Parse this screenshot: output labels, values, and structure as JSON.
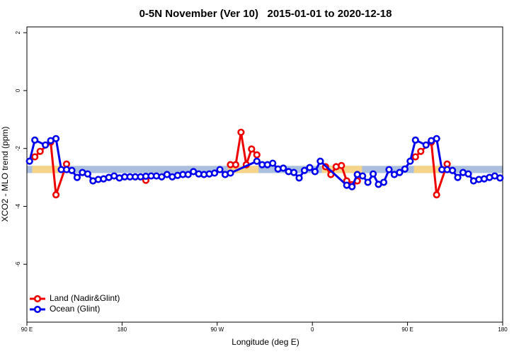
{
  "chart_data": {
    "type": "line",
    "title": "0-5N November (Ver 10)   2015-01-01 to 2020-12-18",
    "xlabel": "Longitude (deg E)",
    "ylabel": "XCO2 - MLO trend (ppm)",
    "xlim": [
      90,
      540
    ],
    "ylim": [
      -8,
      2.2
    ],
    "xticks": [
      {
        "value": 90,
        "label": "90 E"
      },
      {
        "value": 180,
        "label": "180"
      },
      {
        "value": 270,
        "label": "90 W"
      },
      {
        "value": 360,
        "label": "0"
      },
      {
        "value": 450,
        "label": "90 E"
      },
      {
        "value": 540,
        "label": "180"
      }
    ],
    "yticks": [
      -6,
      -4,
      -2,
      0,
      2
    ],
    "band": {
      "range": [
        -2.85,
        -2.6
      ],
      "color": "#a9bfdd",
      "land_color": "#f6d48a",
      "land_spans": [
        [
          95,
          128
        ],
        [
          280,
          309
        ],
        [
          369,
          407
        ],
        [
          456,
          486
        ]
      ]
    },
    "legend": "bottom-left",
    "series": [
      {
        "name": "Land (Nadir&Glint)",
        "color": "#ee0000",
        "x": [
          97.5,
          102.5,
          112.5,
          117.5,
          127.5,
          null,
          202.5,
          null,
          282.5,
          287.5,
          292.5,
          297.5,
          302.5,
          307.5,
          null,
          372.5,
          377.5,
          382.5,
          387.5,
          392.5,
          397.5,
          402.5,
          null,
          457.5,
          462.5,
          472.5,
          477.5,
          487.5
        ],
        "values": [
          -2.29,
          -2.1,
          -1.78,
          -3.6,
          -2.54,
          null,
          -3.1,
          null,
          -2.56,
          -2.56,
          -1.44,
          -2.56,
          -2.02,
          -2.22,
          null,
          -2.63,
          -2.9,
          -2.63,
          -2.59,
          -3.12,
          -3.25,
          -3.12,
          null,
          -2.29,
          -2.1,
          -1.78,
          -3.6,
          -2.54
        ]
      },
      {
        "name": "Ocean (Glint)",
        "color": "#0000ee",
        "x": [
          92.5,
          97.5,
          107.5,
          112.5,
          117.5,
          122.5,
          127.5,
          132.5,
          137.5,
          142.5,
          147.5,
          152.5,
          157.5,
          162.5,
          167.5,
          172.5,
          177.5,
          182.5,
          187.5,
          192.5,
          197.5,
          202.5,
          207.5,
          212.5,
          217.5,
          222.5,
          227.5,
          232.5,
          237.5,
          242.5,
          247.5,
          252.5,
          257.5,
          262.5,
          267.5,
          272.5,
          277.5,
          282.5,
          307.5,
          312.5,
          317.5,
          322.5,
          327.5,
          332.5,
          337.5,
          342.5,
          347.5,
          352.5,
          357.5,
          362.5,
          367.5,
          392.5,
          397.5,
          402.5,
          407.5,
          412.5,
          417.5,
          422.5,
          427.5,
          432.5,
          437.5,
          442.5,
          447.5,
          452.5,
          457.5,
          467.5,
          472.5,
          477.5,
          482.5,
          487.5,
          492.5,
          497.5,
          502.5,
          507.5,
          512.5,
          517.5,
          522.5,
          527.5,
          532.5,
          537.5
        ],
        "values": [
          -2.44,
          -1.71,
          -1.88,
          -1.73,
          -1.66,
          -2.73,
          -2.73,
          -2.76,
          -3.0,
          -2.83,
          -2.88,
          -3.12,
          -3.07,
          -3.05,
          -3.0,
          -2.95,
          -3.02,
          -2.98,
          -2.98,
          -2.98,
          -2.98,
          -2.96,
          -2.95,
          -2.95,
          -2.98,
          -2.9,
          -2.98,
          -2.93,
          -2.9,
          -2.9,
          -2.8,
          -2.88,
          -2.9,
          -2.88,
          -2.85,
          -2.73,
          -2.9,
          -2.85,
          -2.44,
          -2.56,
          -2.56,
          -2.51,
          -2.71,
          -2.68,
          -2.8,
          -2.83,
          -3.02,
          -2.76,
          -2.66,
          -2.8,
          -2.44,
          -3.27,
          -3.32,
          -2.9,
          -2.95,
          -3.17,
          -2.88,
          -3.24,
          -3.17,
          -2.73,
          -2.9,
          -2.83,
          -2.71,
          -2.44,
          -1.71,
          -1.88,
          -1.73,
          -1.66,
          -2.73,
          -2.73,
          -2.76,
          -3.0,
          -2.83,
          -2.88,
          -3.12,
          -3.07,
          -3.05,
          -3.0,
          -2.95,
          -3.02
        ]
      }
    ]
  }
}
